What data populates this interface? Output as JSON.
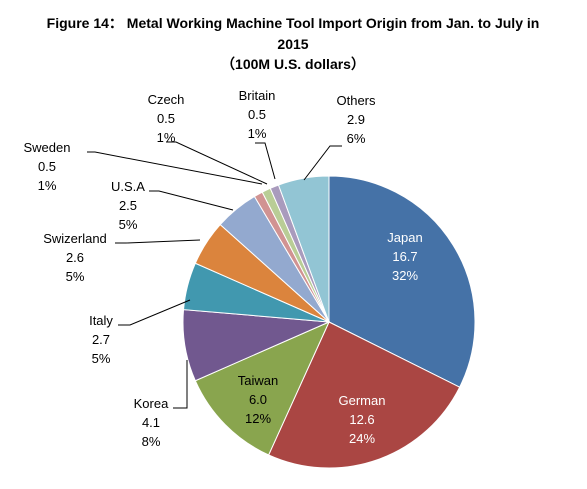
{
  "title": {
    "line1": "Figure 14： Metal Working Machine Tool Import Origin from Jan. to July in",
    "line2": "2015",
    "line3": "（100M U.S. dollars）"
  },
  "chart_data": {
    "type": "pie",
    "title": "Figure 14： Metal Working Machine Tool Import Origin from Jan. to July in 2015 （100M U.S. dollars）",
    "units": "100M U.S. dollars",
    "slices": [
      {
        "name": "Japan",
        "value": 16.7,
        "percent": "32%",
        "color": "#4572A7"
      },
      {
        "name": "German",
        "value": 12.6,
        "percent": "24%",
        "color": "#AA4643"
      },
      {
        "name": "Taiwan",
        "value": 6.0,
        "percent": "12%",
        "color": "#89A54E"
      },
      {
        "name": "Korea",
        "value": 4.1,
        "percent": "8%",
        "color": "#71588F"
      },
      {
        "name": "Italy",
        "value": 2.7,
        "percent": "5%",
        "color": "#4198AF"
      },
      {
        "name": "Swizerland",
        "value": 2.6,
        "percent": "5%",
        "color": "#DB843D"
      },
      {
        "name": "U.S.A",
        "value": 2.5,
        "percent": "5%",
        "color": "#93A9CF"
      },
      {
        "name": "Sweden",
        "value": 0.5,
        "percent": "1%",
        "color": "#D19392"
      },
      {
        "name": "Czech",
        "value": 0.5,
        "percent": "1%",
        "color": "#B9CD96"
      },
      {
        "name": "Britain",
        "value": 0.5,
        "percent": "1%",
        "color": "#A99BBD"
      },
      {
        "name": "Others",
        "value": 2.9,
        "percent": "6%",
        "color": "#92C5D4"
      }
    ]
  }
}
